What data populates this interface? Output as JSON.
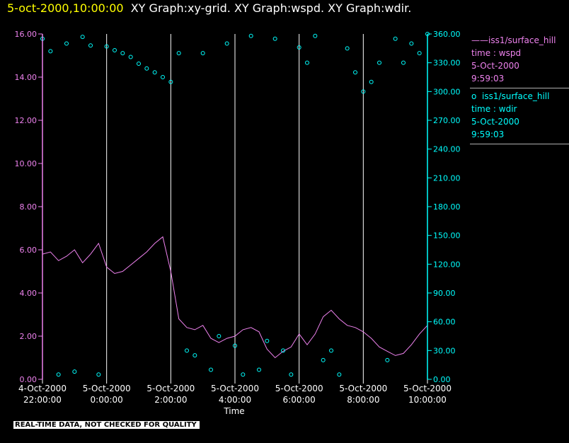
{
  "title": {
    "timestamp": "5-oct-2000,10:00:00",
    "graphs": "XY Graph:xy-grid.  XY Graph:wspd.  XY Graph:wdir."
  },
  "legend": [
    {
      "marker": "——",
      "source": "iss1/surface_hill",
      "variable": "time : wspd",
      "date": "5-Oct-2000",
      "time": "9:59:03"
    },
    {
      "marker": "o",
      "source": "iss1/surface_hill",
      "variable": "time : wdir",
      "date": "5-Oct-2000",
      "time": "9:59:03"
    }
  ],
  "disclaimer": "REAL-TIME DATA, NOT CHECKED FOR QUALITY",
  "colors": {
    "background": "#000000",
    "wspd": "#ee82ee",
    "wdir": "#00ffff",
    "title_time": "#ffff00",
    "grid": "#ffffff"
  },
  "chart_data": {
    "type": "line",
    "xlabel": "Time",
    "x_unit": "hours since 4-Oct-2000 22:00:00",
    "xlim": [
      0,
      12
    ],
    "x_ticks": [
      {
        "value": 0,
        "line1": "4-Oct-2000",
        "line2": "22:00:00"
      },
      {
        "value": 2,
        "line1": "5-Oct-2000",
        "line2": "0:00:00"
      },
      {
        "value": 4,
        "line1": "5-Oct-2000",
        "line2": "2:00:00"
      },
      {
        "value": 6,
        "line1": "5-Oct-2000",
        "line2": "4:00:00"
      },
      {
        "value": 8,
        "line1": "5-Oct-2000",
        "line2": "6:00:00"
      },
      {
        "value": 10,
        "line1": "5-Oct-2000",
        "line2": "8:00:00"
      },
      {
        "value": 12,
        "line1": "5-Oct-2000",
        "line2": "10:00:00"
      }
    ],
    "grid": "vertical lines at x ticks",
    "left_axis": {
      "ylim": [
        0,
        16
      ],
      "ticks": [
        "0.00",
        "2.00",
        "4.00",
        "6.00",
        "8.00",
        "10.00",
        "12.00",
        "14.00",
        "16.00"
      ]
    },
    "right_axis": {
      "ylim": [
        0,
        360
      ],
      "ticks": [
        "0.00",
        "30.00",
        "60.00",
        "90.00",
        "120.00",
        "150.00",
        "180.00",
        "210.00",
        "240.00",
        "270.00",
        "300.00",
        "330.00",
        "360.00"
      ]
    },
    "series": [
      {
        "name": "iss1/surface_hill time : wspd",
        "axis": "left",
        "style": "line",
        "x": [
          0,
          0.25,
          0.5,
          0.75,
          1,
          1.25,
          1.5,
          1.75,
          2,
          2.25,
          2.5,
          2.75,
          3,
          3.25,
          3.5,
          3.75,
          4,
          4.25,
          4.5,
          4.75,
          5,
          5.25,
          5.5,
          5.75,
          6,
          6.25,
          6.5,
          6.75,
          7,
          7.25,
          7.5,
          7.75,
          8,
          8.25,
          8.5,
          8.75,
          9,
          9.25,
          9.5,
          9.75,
          10,
          10.25,
          10.5,
          10.75,
          11,
          11.25,
          11.5,
          11.75,
          12
        ],
        "y": [
          5.8,
          5.9,
          5.5,
          5.7,
          6.0,
          5.4,
          5.8,
          6.3,
          5.2,
          4.9,
          5.0,
          5.3,
          5.6,
          5.9,
          6.3,
          6.6,
          5.0,
          2.8,
          2.4,
          2.3,
          2.5,
          1.9,
          1.7,
          1.9,
          2.0,
          2.3,
          2.4,
          2.2,
          1.4,
          1.0,
          1.3,
          1.5,
          2.1,
          1.6,
          2.1,
          2.9,
          3.2,
          2.8,
          2.5,
          2.4,
          2.2,
          1.9,
          1.5,
          1.3,
          1.1,
          1.2,
          1.6,
          2.1,
          2.5
        ]
      },
      {
        "name": "iss1/surface_hill time : wdir",
        "axis": "right",
        "style": "markers",
        "x": [
          0,
          0.25,
          0.5,
          0.75,
          1,
          1.25,
          1.5,
          1.75,
          2,
          2.25,
          2.5,
          2.75,
          3,
          3.25,
          3.5,
          3.75,
          4,
          4.25,
          4.5,
          4.75,
          5,
          5.25,
          5.5,
          5.75,
          6,
          6.25,
          6.5,
          6.75,
          7,
          7.25,
          7.5,
          7.75,
          8,
          8.25,
          8.5,
          8.75,
          9,
          9.25,
          9.5,
          9.75,
          10,
          10.25,
          10.5,
          10.75,
          11,
          11.25,
          11.5,
          11.75,
          12
        ],
        "y": [
          355,
          342,
          5,
          350,
          8,
          357,
          348,
          5,
          347,
          343,
          340,
          336,
          329,
          324,
          320,
          315,
          310,
          340,
          30,
          25,
          340,
          10,
          45,
          350,
          35,
          5,
          358,
          10,
          40,
          355,
          30,
          5,
          346,
          330,
          358,
          20,
          30,
          5,
          345,
          320,
          300,
          310,
          330,
          20,
          355,
          330,
          350,
          340,
          360
        ]
      }
    ]
  }
}
